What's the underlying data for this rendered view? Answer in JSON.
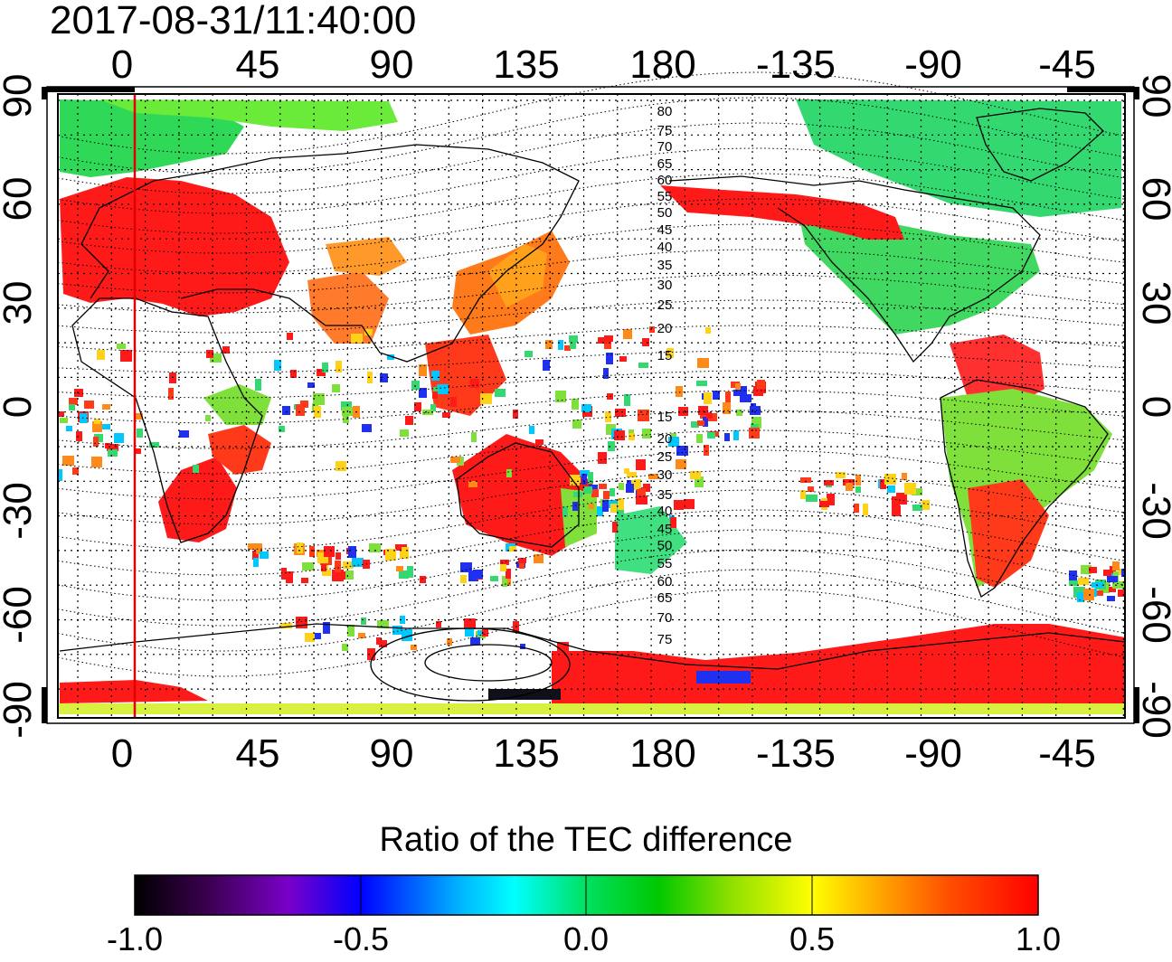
{
  "timestamp": "2017-08-31/11:40:00",
  "map": {
    "lon_ticks": [
      "0",
      "45",
      "90",
      "135",
      "180",
      "-135",
      "-90",
      "-45"
    ],
    "lat_ticks_left": [
      "90",
      "60",
      "30",
      "0",
      "-30",
      "-60",
      "-90"
    ],
    "lat_ticks_right": [
      "90",
      "60",
      "30",
      "0",
      "-30",
      "-60",
      "-90"
    ],
    "contour_labels": [
      "80",
      "75",
      "70",
      "65",
      "60",
      "55",
      "50",
      "45",
      "40",
      "35",
      "30",
      "25",
      "20",
      "15",
      "15",
      "20",
      "25",
      "30",
      "35",
      "40",
      "45",
      "50",
      "55",
      "60",
      "65",
      "70",
      "75"
    ],
    "colors": {
      "high": "#ff1a1a",
      "mid": "#22dd33",
      "low": "#0000ff",
      "ocean": "#ffffff"
    }
  },
  "colorbar": {
    "title": "Ratio of the TEC difference",
    "labels": [
      "-1.0",
      "-0.5",
      "0.0",
      "0.5",
      "1.0"
    ],
    "colors": [
      "#000000",
      "#3a004f",
      "#7a00c8",
      "#0000ff",
      "#00b4ff",
      "#00ffff",
      "#00e060",
      "#00c800",
      "#8fe000",
      "#ffff00",
      "#ffa000",
      "#ff5000",
      "#ff0000"
    ]
  }
}
